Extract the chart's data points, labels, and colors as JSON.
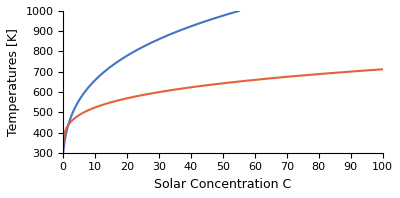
{
  "title": "",
  "xlabel": "Solar Concentration C",
  "ylabel": "Temperatures [K]",
  "xlim": [
    0,
    100
  ],
  "ylim": [
    300,
    1000
  ],
  "xticks": [
    0,
    10,
    20,
    30,
    40,
    50,
    60,
    70,
    80,
    90,
    100
  ],
  "yticks": [
    300,
    400,
    500,
    600,
    700,
    800,
    900,
    1000
  ],
  "blue_color": "#4472C4",
  "red_color": "#E8603C",
  "background_color": "#ffffff",
  "T_amb": 300,
  "line_width": 1.5
}
